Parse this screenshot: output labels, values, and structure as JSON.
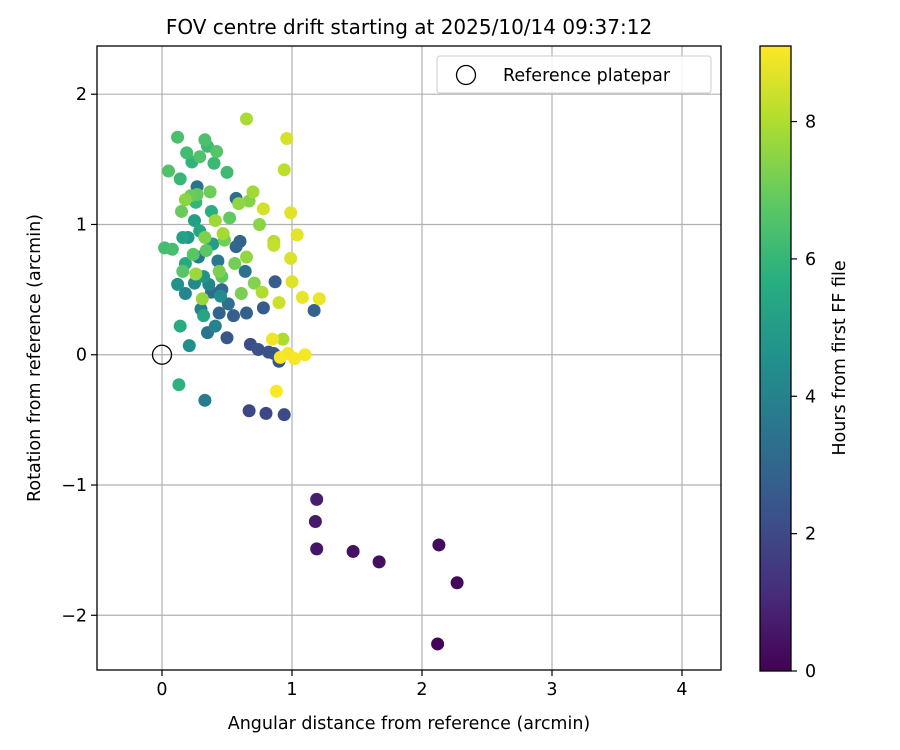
{
  "chart_data": {
    "type": "scatter",
    "title": "FOV centre drift starting at 2025/10/14 09:37:12",
    "xlabel": "Angular distance from reference (arcmin)",
    "ylabel": "Rotation from reference (arcmin)",
    "xlim": [
      -0.5,
      4.3
    ],
    "ylim": [
      -2.42,
      2.37
    ],
    "xticks": [
      0,
      1,
      2,
      3,
      4
    ],
    "yticks": [
      -2,
      -1,
      0,
      1,
      2
    ],
    "grid": true,
    "legend": {
      "position": "top-right",
      "entries": [
        "Reference platepar"
      ]
    },
    "reference_point": {
      "x": 0,
      "y": 0
    },
    "colorbar": {
      "label": "Hours from first FF file",
      "min": 0,
      "max": 9.1,
      "ticks": [
        0,
        2,
        4,
        6,
        8
      ],
      "colormap": "viridis"
    },
    "points": [
      {
        "x": 2.12,
        "y": -2.22,
        "h": 0.05
      },
      {
        "x": 2.27,
        "y": -1.75,
        "h": 0.15
      },
      {
        "x": 2.13,
        "y": -1.46,
        "h": 0.25
      },
      {
        "x": 1.67,
        "y": -1.59,
        "h": 0.35
      },
      {
        "x": 1.47,
        "y": -1.51,
        "h": 0.45
      },
      {
        "x": 1.19,
        "y": -1.49,
        "h": 0.55
      },
      {
        "x": 1.18,
        "y": -1.28,
        "h": 0.65
      },
      {
        "x": 1.19,
        "y": -1.11,
        "h": 0.75
      },
      {
        "x": 0.67,
        "y": -0.43,
        "h": 1.9
      },
      {
        "x": 0.8,
        "y": -0.45,
        "h": 1.95
      },
      {
        "x": 0.94,
        "y": -0.46,
        "h": 2.0
      },
      {
        "x": 0.68,
        "y": 0.08,
        "h": 2.15
      },
      {
        "x": 0.74,
        "y": 0.04,
        "h": 2.2
      },
      {
        "x": 0.82,
        "y": 0.02,
        "h": 2.3
      },
      {
        "x": 0.86,
        "y": 0.01,
        "h": 2.35
      },
      {
        "x": 0.9,
        "y": -0.05,
        "h": 2.4
      },
      {
        "x": 0.5,
        "y": 0.13,
        "h": 2.5
      },
      {
        "x": 0.78,
        "y": 0.36,
        "h": 2.6
      },
      {
        "x": 0.87,
        "y": 0.56,
        "h": 2.65
      },
      {
        "x": 0.55,
        "y": 0.3,
        "h": 2.75
      },
      {
        "x": 0.65,
        "y": 0.32,
        "h": 2.8
      },
      {
        "x": 1.17,
        "y": 0.34,
        "h": 2.85
      },
      {
        "x": 0.44,
        "y": 0.32,
        "h": 2.9
      },
      {
        "x": 0.6,
        "y": 0.87,
        "h": 2.95
      },
      {
        "x": 0.57,
        "y": 0.83,
        "h": 3.0
      },
      {
        "x": 0.46,
        "y": 0.5,
        "h": 3.1
      },
      {
        "x": 0.57,
        "y": 1.2,
        "h": 3.2
      },
      {
        "x": 0.38,
        "y": 0.48,
        "h": 3.25
      },
      {
        "x": 0.51,
        "y": 0.39,
        "h": 3.3
      },
      {
        "x": 0.64,
        "y": 0.64,
        "h": 3.4
      },
      {
        "x": 0.27,
        "y": 1.29,
        "h": 3.45
      },
      {
        "x": 0.35,
        "y": 0.17,
        "h": 3.5
      },
      {
        "x": 0.43,
        "y": 0.72,
        "h": 3.6
      },
      {
        "x": 0.28,
        "y": 0.75,
        "h": 3.7
      },
      {
        "x": 0.33,
        "y": -0.35,
        "h": 3.8
      },
      {
        "x": 0.3,
        "y": 0.35,
        "h": 3.9
      },
      {
        "x": 0.41,
        "y": 0.22,
        "h": 4.0
      },
      {
        "x": 0.36,
        "y": 0.54,
        "h": 4.1
      },
      {
        "x": 0.18,
        "y": 0.47,
        "h": 4.2
      },
      {
        "x": 0.25,
        "y": 0.55,
        "h": 4.3
      },
      {
        "x": 0.45,
        "y": 0.45,
        "h": 4.35
      },
      {
        "x": 0.21,
        "y": 0.07,
        "h": 4.5
      },
      {
        "x": 0.12,
        "y": 0.54,
        "h": 4.6
      },
      {
        "x": 0.32,
        "y": 0.6,
        "h": 4.7
      },
      {
        "x": 0.2,
        "y": 0.9,
        "h": 4.85
      },
      {
        "x": 0.39,
        "y": 0.85,
        "h": 5.0
      },
      {
        "x": 0.25,
        "y": 1.03,
        "h": 5.1
      },
      {
        "x": 0.16,
        "y": 0.9,
        "h": 5.2
      },
      {
        "x": 0.32,
        "y": 0.3,
        "h": 5.3
      },
      {
        "x": 0.29,
        "y": 0.95,
        "h": 5.4
      },
      {
        "x": 0.18,
        "y": 0.7,
        "h": 5.5
      },
      {
        "x": 0.14,
        "y": 0.22,
        "h": 5.6
      },
      {
        "x": 0.38,
        "y": 1.1,
        "h": 5.7
      },
      {
        "x": 0.13,
        "y": -0.23,
        "h": 5.8
      },
      {
        "x": 0.23,
        "y": 1.48,
        "h": 5.9
      },
      {
        "x": 0.26,
        "y": 1.17,
        "h": 6.0
      },
      {
        "x": 0.14,
        "y": 1.35,
        "h": 6.05
      },
      {
        "x": 0.4,
        "y": 1.47,
        "h": 6.1
      },
      {
        "x": 0.35,
        "y": 1.6,
        "h": 6.15
      },
      {
        "x": 0.5,
        "y": 1.4,
        "h": 6.2
      },
      {
        "x": 0.19,
        "y": 1.55,
        "h": 6.25
      },
      {
        "x": 0.02,
        "y": 0.82,
        "h": 6.3
      },
      {
        "x": 0.08,
        "y": 0.81,
        "h": 6.35
      },
      {
        "x": 0.12,
        "y": 1.67,
        "h": 6.4
      },
      {
        "x": 0.33,
        "y": 1.65,
        "h": 6.45
      },
      {
        "x": 0.05,
        "y": 1.41,
        "h": 6.5
      },
      {
        "x": 0.29,
        "y": 1.52,
        "h": 6.55
      },
      {
        "x": 0.42,
        "y": 1.56,
        "h": 6.6
      },
      {
        "x": 0.16,
        "y": 0.64,
        "h": 6.65
      },
      {
        "x": 0.24,
        "y": 0.77,
        "h": 6.7
      },
      {
        "x": 0.34,
        "y": 0.8,
        "h": 6.75
      },
      {
        "x": 0.46,
        "y": 0.6,
        "h": 6.8
      },
      {
        "x": 0.52,
        "y": 1.05,
        "h": 6.85
      },
      {
        "x": 0.27,
        "y": 1.23,
        "h": 6.9
      },
      {
        "x": 0.15,
        "y": 1.1,
        "h": 6.95
      },
      {
        "x": 0.22,
        "y": 1.22,
        "h": 7.0
      },
      {
        "x": 0.37,
        "y": 1.25,
        "h": 7.05
      },
      {
        "x": 0.48,
        "y": 0.88,
        "h": 7.1
      },
      {
        "x": 0.56,
        "y": 0.7,
        "h": 7.15
      },
      {
        "x": 0.61,
        "y": 0.47,
        "h": 7.2
      },
      {
        "x": 0.44,
        "y": 0.64,
        "h": 7.25
      },
      {
        "x": 0.33,
        "y": 0.9,
        "h": 7.3
      },
      {
        "x": 0.71,
        "y": 0.55,
        "h": 7.35
      },
      {
        "x": 0.67,
        "y": 1.18,
        "h": 7.4
      },
      {
        "x": 0.75,
        "y": 1.0,
        "h": 7.45
      },
      {
        "x": 0.18,
        "y": 1.19,
        "h": 7.5
      },
      {
        "x": 0.59,
        "y": 1.16,
        "h": 7.55
      },
      {
        "x": 0.65,
        "y": 0.75,
        "h": 7.6
      },
      {
        "x": 0.31,
        "y": 0.43,
        "h": 7.65
      },
      {
        "x": 0.26,
        "y": 0.62,
        "h": 7.7
      },
      {
        "x": 0.41,
        "y": 1.03,
        "h": 7.75
      },
      {
        "x": 0.7,
        "y": 1.25,
        "h": 7.8
      },
      {
        "x": 0.47,
        "y": 0.93,
        "h": 7.85
      },
      {
        "x": 0.65,
        "y": 1.81,
        "h": 7.9
      },
      {
        "x": 0.93,
        "y": 0.12,
        "h": 7.95
      },
      {
        "x": 0.77,
        "y": 0.48,
        "h": 8.0
      },
      {
        "x": 0.86,
        "y": 0.87,
        "h": 8.1
      },
      {
        "x": 0.94,
        "y": 1.42,
        "h": 8.2
      },
      {
        "x": 0.86,
        "y": 0.84,
        "h": 8.3
      },
      {
        "x": 0.9,
        "y": 0.4,
        "h": 8.4
      },
      {
        "x": 0.78,
        "y": 1.12,
        "h": 8.5
      },
      {
        "x": 0.96,
        "y": 1.66,
        "h": 8.55
      },
      {
        "x": 0.99,
        "y": 0.74,
        "h": 8.6
      },
      {
        "x": 1.0,
        "y": 0.56,
        "h": 8.65
      },
      {
        "x": 0.99,
        "y": 1.09,
        "h": 8.7
      },
      {
        "x": 1.04,
        "y": 0.92,
        "h": 8.75
      },
      {
        "x": 1.08,
        "y": 0.44,
        "h": 8.8
      },
      {
        "x": 1.21,
        "y": 0.43,
        "h": 8.85
      },
      {
        "x": 0.85,
        "y": 0.12,
        "h": 8.9
      },
      {
        "x": 0.97,
        "y": 0.01,
        "h": 8.95
      },
      {
        "x": 1.1,
        "y": 0.0,
        "h": 9.0
      },
      {
        "x": 1.02,
        "y": -0.03,
        "h": 9.02
      },
      {
        "x": 0.91,
        "y": -0.02,
        "h": 9.04
      },
      {
        "x": 0.88,
        "y": -0.28,
        "h": 9.06
      }
    ]
  }
}
